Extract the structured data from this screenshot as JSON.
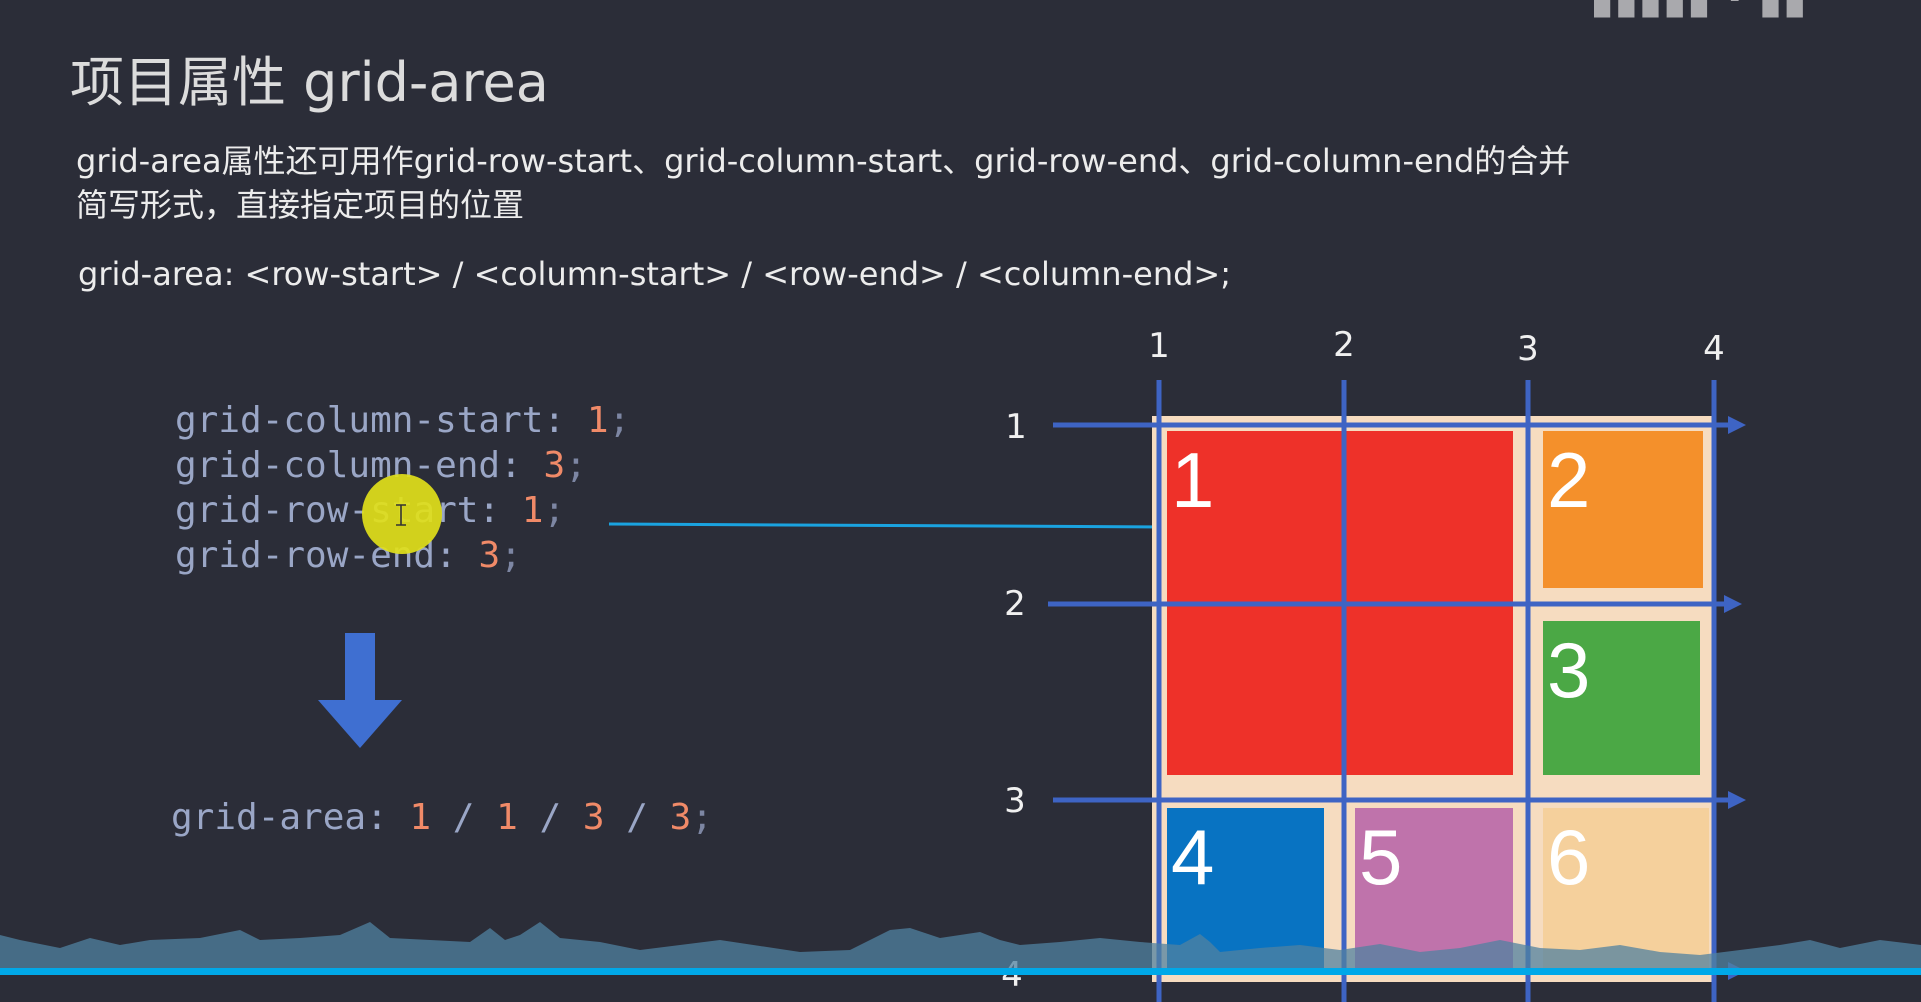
{
  "slide": {
    "title": "项目属性  grid-area",
    "description_line1": "grid-area属性还可用作grid-row-start、grid-column-start、grid-row-end、grid-column-end的合并",
    "description_line2": "简写形式，直接指定项目的位置",
    "syntax": "grid-area: <row-start> / <column-start> / <row-end> / <column-end>;",
    "code": [
      {
        "prop": "grid-column-start: ",
        "value": "1",
        "end": ";"
      },
      {
        "prop": "grid-column-end: ",
        "value": "3",
        "end": ";"
      },
      {
        "prop": "grid-row-start: ",
        "value": "1",
        "end": ";"
      },
      {
        "prop": "grid-row-end: ",
        "value": "3",
        "end": ";"
      }
    ],
    "shorthand": {
      "prop": "grid-area: ",
      "v1": "1",
      "s1": " / ",
      "v2": "1",
      "s2": " / ",
      "v3": "3",
      "s3": " / ",
      "v4": "3",
      "end": ";"
    }
  },
  "grid_diagram": {
    "column_lines": [
      "1",
      "2",
      "3",
      "4"
    ],
    "row_lines": [
      "1",
      "2",
      "3",
      "4"
    ],
    "items": [
      {
        "label": "1",
        "color": "#ee3129"
      },
      {
        "label": "2",
        "color": "#f4902b"
      },
      {
        "label": "3",
        "color": "#4ba845"
      },
      {
        "label": "4",
        "color": "#0873c2"
      },
      {
        "label": "5",
        "color": "#bf73ab"
      },
      {
        "label": "6",
        "color": "#f5d09c"
      }
    ],
    "line_color": "#3e64c4",
    "container_color": "#f6dcc0"
  },
  "colors": {
    "background": "#2b2d38",
    "accent_line": "#00a8e8",
    "cursor_highlight": "#e1e01a",
    "arrow": "#3f6fd1"
  }
}
